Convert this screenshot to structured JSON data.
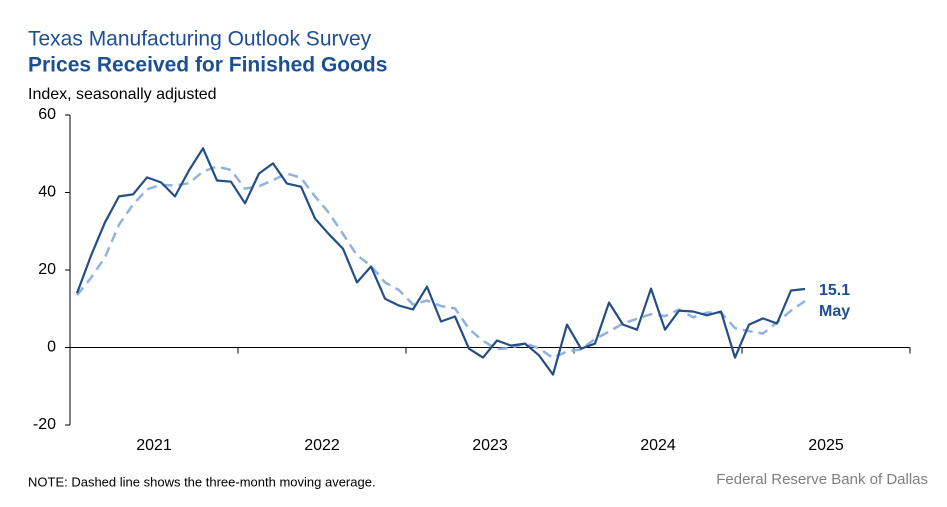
{
  "chart_data": {
    "type": "line",
    "title": "Texas Manufacturing Outlook Survey",
    "subtitle": "Prices Received for Finished Goods",
    "y_label": "Index, seasonally adjusted",
    "note": "NOTE: Dashed line shows the three-month moving average.",
    "source": "Federal Reserve Bank of Dallas",
    "annotation": "May",
    "categories": [
      "2021",
      null,
      null,
      null,
      null,
      null,
      null,
      null,
      null,
      null,
      null,
      null,
      "2022",
      null,
      null,
      null,
      null,
      null,
      null,
      null,
      null,
      null,
      null,
      null,
      "2023",
      null,
      null,
      null,
      null,
      null,
      null,
      null,
      null,
      null,
      null,
      null,
      "2024",
      null,
      null,
      null,
      null,
      null,
      null,
      null,
      null,
      null,
      null,
      null,
      "2025",
      null,
      null,
      null,
      null,
      null,
      null,
      null,
      null,
      null,
      null,
      null
    ],
    "series": [
      {
        "name": "Index",
        "color": "#244e86",
        "dashed": false,
        "values": [
          14,
          23.7,
          32.3,
          39,
          39.5,
          43.9,
          42.6,
          39,
          45.7,
          51.4,
          43.1,
          42.8,
          37.2,
          44.9,
          47.5,
          42.3,
          41.5,
          33.3,
          29.2,
          25.5,
          16.8,
          20.9,
          12.6,
          10.8,
          9.8,
          15.7,
          6.7,
          8,
          -0.3,
          -2.6,
          1.8,
          0.5,
          1,
          -2,
          -7,
          5.9,
          -0.3,
          1,
          11.6,
          5.9,
          4.6,
          15.2,
          4.6,
          9.5,
          9.3,
          8.3,
          9.3,
          -2.6,
          5.9,
          7.5,
          6.2,
          14.7,
          15.1,
          null,
          null,
          null,
          null,
          null,
          null,
          null
        ]
      },
      {
        "name": "Three-month moving average",
        "color": "#8fb3e0",
        "dashed": true,
        "values": [
          13.5,
          18,
          23.3,
          31.7,
          36.9,
          40.8,
          42,
          41.8,
          42.4,
          45.4,
          46.7,
          45.8,
          41,
          41.6,
          43.2,
          44.9,
          43.8,
          39,
          34.7,
          29.3,
          23.8,
          21.1,
          16.8,
          14.8,
          11.1,
          12.1,
          10.7,
          10.1,
          4.8,
          1.7,
          -0.4,
          -0.1,
          1.1,
          -0.2,
          -2.7,
          -1,
          -0.5,
          2.2,
          4.1,
          6.2,
          7.4,
          8.6,
          8.1,
          9.8,
          7.8,
          9,
          9,
          5,
          4.2,
          3.6,
          6.5,
          9.5,
          12,
          null,
          null,
          null,
          null,
          null,
          null,
          null
        ]
      }
    ],
    "ylim": [
      -20,
      60
    ],
    "yticks": [
      -20,
      0,
      20,
      40,
      60
    ],
    "grid": false
  }
}
